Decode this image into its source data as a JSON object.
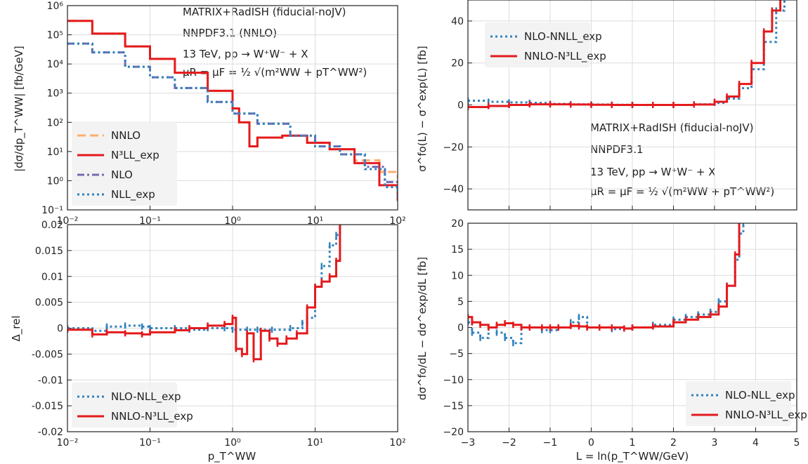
{
  "colors": {
    "nnlo": "#fdae6b",
    "n3ll": "#e41a1c",
    "nlo": "#756bb1",
    "nll": "#3182bd",
    "grid": "#dcdcdc",
    "frame": "#222222",
    "legend_bg": "#f2f2f2"
  },
  "annotations": {
    "top_left": [
      "MATRIX+RadISH (fiducial-noJV)",
      "NNPDF3.1 (NNLO)",
      "13 TeV, pp → W⁺W⁻ + X",
      "μR = μF = ½ √(m²WW + pT^WW²)"
    ],
    "top_right": [
      "MATRIX+RadISH (fiducial-noJV)",
      "NNPDF3.1",
      "13 TeV, pp → W⁺W⁻ + X",
      "μR = μF = ½ √(m²WW + pT^WW²)"
    ]
  },
  "chart_data": [
    {
      "panel": "top-left",
      "type": "line",
      "xscale": "log",
      "yscale": "log",
      "xlim": [
        0.01,
        100
      ],
      "ylim": [
        0.1,
        1000000
      ],
      "xlabel": "",
      "ylabel": "|dσ/dp_T^WW| [fb/GeV]",
      "xticks": [
        "10⁻²",
        "10⁻¹",
        "10⁰",
        "10¹",
        "10²"
      ],
      "yticks": [
        "10⁻¹",
        "10⁰",
        "10¹",
        "10²",
        "10³",
        "10⁴",
        "10⁵",
        "10⁶"
      ],
      "legend_position": "lower-left",
      "series": [
        {
          "name": "NNLO",
          "style": "dashed",
          "color_key": "nnlo",
          "x": [
            0.01,
            0.02,
            0.05,
            0.1,
            0.2,
            0.5,
            1.0,
            1.2,
            1.6,
            2.0,
            4.0,
            8.0,
            15,
            30,
            60,
            100
          ],
          "y": [
            300000,
            110000,
            40000,
            15000,
            5000,
            1200,
            300,
            100,
            15,
            30,
            35,
            20,
            12,
            5,
            2,
            1.2
          ]
        },
        {
          "name": "N³LL_exp",
          "style": "solid",
          "color_key": "n3ll",
          "x": [
            0.01,
            0.02,
            0.05,
            0.1,
            0.2,
            0.5,
            1.0,
            1.2,
            1.6,
            2.0,
            4.0,
            8.0,
            15,
            30,
            60,
            100
          ],
          "y": [
            300000,
            110000,
            40000,
            15000,
            5000,
            1200,
            300,
            100,
            15,
            30,
            35,
            20,
            12,
            4,
            0.7,
            0.2
          ]
        },
        {
          "name": "NLO",
          "style": "dashdot",
          "color_key": "nlo",
          "x": [
            0.01,
            0.02,
            0.05,
            0.1,
            0.2,
            0.5,
            1,
            2,
            5,
            10,
            20,
            40,
            70,
            100
          ],
          "y": [
            50000,
            25000,
            8000,
            3500,
            1500,
            500,
            200,
            90,
            35,
            15,
            8,
            3,
            0.9,
            0.4
          ]
        },
        {
          "name": "NLL_exp",
          "style": "dotted",
          "color_key": "nll",
          "x": [
            0.01,
            0.02,
            0.05,
            0.1,
            0.2,
            0.5,
            1,
            2,
            5,
            10,
            20,
            40,
            70,
            100
          ],
          "y": [
            50000,
            25000,
            8000,
            3500,
            1500,
            500,
            200,
            90,
            35,
            15,
            8,
            2.5,
            0.6,
            0.2
          ]
        }
      ]
    },
    {
      "panel": "bottom-left",
      "type": "line",
      "xscale": "log",
      "yscale": "linear",
      "xlim": [
        0.01,
        100
      ],
      "ylim": [
        -0.02,
        0.02
      ],
      "xlabel": "p_T^WW",
      "ylabel": "Δ_rel",
      "xticks": [
        "10⁻²",
        "10⁻¹",
        "10⁰",
        "10¹",
        "10²"
      ],
      "yticks": [
        "-0.02",
        "-0.015",
        "-0.01",
        "-0.005",
        "0",
        "0.005",
        "0.01",
        "0.015",
        "0.02"
      ],
      "legend_position": "lower-left",
      "series": [
        {
          "name": "NLO-NLL_exp",
          "style": "dotted-errorbar",
          "color_key": "nll",
          "x": [
            0.01,
            0.02,
            0.03,
            0.05,
            0.08,
            0.1,
            0.2,
            0.3,
            0.5,
            0.8,
            1.0,
            1.5,
            2.0,
            3.0,
            5.0,
            7.0,
            8.0,
            10,
            12,
            15,
            18,
            20
          ],
          "y": [
            0.0,
            -0.0005,
            0.0003,
            0.0005,
            0.0003,
            0.0,
            0.0,
            -0.0003,
            0.0,
            0.0,
            -0.0003,
            -0.0003,
            -0.0003,
            -0.0003,
            0.0,
            0.001,
            0.002,
            0.008,
            0.012,
            0.016,
            0.018,
            0.02
          ]
        },
        {
          "name": "NNLO-N³LL_exp",
          "style": "solid-errorbar",
          "color_key": "n3ll",
          "x": [
            0.01,
            0.02,
            0.03,
            0.05,
            0.08,
            0.1,
            0.2,
            0.3,
            0.5,
            0.8,
            1.0,
            1.1,
            1.3,
            1.5,
            1.8,
            2.2,
            2.8,
            3.5,
            4.5,
            6.0,
            8.0,
            10,
            12,
            15,
            18,
            20
          ],
          "y": [
            -0.0003,
            -0.0012,
            -0.0008,
            -0.001,
            -0.0012,
            -0.0008,
            -0.0004,
            0.0,
            0.0005,
            0.0008,
            0.002,
            -0.004,
            -0.005,
            -0.001,
            -0.006,
            -0.0005,
            -0.002,
            -0.003,
            -0.002,
            -0.001,
            0.004,
            0.008,
            0.009,
            0.01,
            0.013,
            0.02
          ]
        }
      ]
    },
    {
      "panel": "top-right",
      "type": "line",
      "xscale": "linear",
      "yscale": "linear",
      "xlim": [
        -3,
        5
      ],
      "ylim": [
        -50,
        50
      ],
      "xlabel": "",
      "ylabel": "σ^fo(L) − σ^exp(L) [fb]",
      "xticks": [],
      "yticks": [
        "−40",
        "−20",
        "0",
        "20",
        "40"
      ],
      "legend_position": "upper-left",
      "series": [
        {
          "name": "NLO-NNLL_exp",
          "style": "dotted-errorbar",
          "color_key": "nll",
          "x": [
            -3,
            -2.5,
            -2,
            -1.5,
            -1,
            -0.5,
            0,
            0.5,
            1,
            1.5,
            2,
            2.5,
            3,
            3.3,
            3.6,
            3.9,
            4.2,
            4.5,
            4.7
          ],
          "y": [
            2,
            1.5,
            1.2,
            1,
            0.5,
            0.3,
            0.2,
            0.1,
            0,
            0,
            0,
            0.3,
            1,
            3,
            8,
            17,
            30,
            45,
            55
          ]
        },
        {
          "name": "NNLO-N³LL_exp",
          "style": "solid-errorbar",
          "color_key": "n3ll",
          "x": [
            -3,
            -2.5,
            -2,
            -1.5,
            -1,
            -0.5,
            0,
            0.5,
            1,
            1.5,
            2,
            2.5,
            3,
            3.3,
            3.6,
            3.9,
            4.2,
            4.4,
            4.6
          ],
          "y": [
            -1,
            -0.5,
            0,
            0.3,
            0.3,
            0.2,
            0.1,
            0,
            0,
            0,
            0,
            0.2,
            1.5,
            4,
            10,
            20,
            35,
            45,
            55
          ]
        }
      ]
    },
    {
      "panel": "bottom-right",
      "type": "line",
      "xscale": "linear",
      "yscale": "linear",
      "xlim": [
        -3,
        5
      ],
      "ylim": [
        -20,
        20
      ],
      "xlabel": "L = ln(p_T^WW/GeV)",
      "ylabel": "dσ^fo/dL − dσ^exp/dL [fb]",
      "xticks": [
        "−3",
        "−2",
        "−1",
        "0",
        "1",
        "2",
        "3",
        "4",
        "5"
      ],
      "yticks": [
        "−20",
        "−15",
        "−10",
        "−5",
        "0",
        "5",
        "10",
        "15",
        "20"
      ],
      "legend_position": "lower-right",
      "series": [
        {
          "name": "NLO-NLL_exp",
          "style": "dotted-errorbar",
          "color_key": "nll",
          "x": [
            -3,
            -2.9,
            -2.7,
            -2.5,
            -2.3,
            -2.1,
            -1.9,
            -1.7,
            -1.5,
            -1.2,
            -1.0,
            -0.8,
            -0.5,
            -0.3,
            -0.1,
            0.2,
            0.5,
            0.8,
            1.0,
            1.5,
            2.0,
            2.3,
            2.6,
            2.9,
            3.1,
            3.3,
            3.5,
            3.6,
            3.7
          ],
          "y": [
            1,
            -1,
            -2,
            0,
            -1,
            -2,
            -3,
            0,
            0,
            -0.5,
            -0.5,
            0,
            1,
            2,
            0,
            0,
            -0.3,
            -0.2,
            0,
            0.5,
            1.5,
            2,
            2.5,
            3,
            5,
            8,
            13,
            18,
            20
          ]
        },
        {
          "name": "NNLO-N³LL_exp",
          "style": "solid-errorbar",
          "color_key": "n3ll",
          "x": [
            -3,
            -2.9,
            -2.7,
            -2.5,
            -2.3,
            -2.1,
            -1.9,
            -1.7,
            -1.5,
            -1.2,
            -1.0,
            -0.8,
            -0.5,
            -0.3,
            -0.1,
            0.2,
            0.5,
            0.8,
            1.0,
            1.5,
            2.0,
            2.3,
            2.6,
            2.9,
            3.1,
            3.3,
            3.5,
            3.6
          ],
          "y": [
            2,
            1,
            0.5,
            0,
            0.5,
            0.8,
            0.5,
            0,
            0,
            0,
            0,
            0,
            0.3,
            0.2,
            0,
            0,
            0,
            -0.2,
            0,
            0.2,
            1,
            1.5,
            2,
            2.5,
            4,
            8,
            14,
            20
          ]
        }
      ]
    }
  ]
}
